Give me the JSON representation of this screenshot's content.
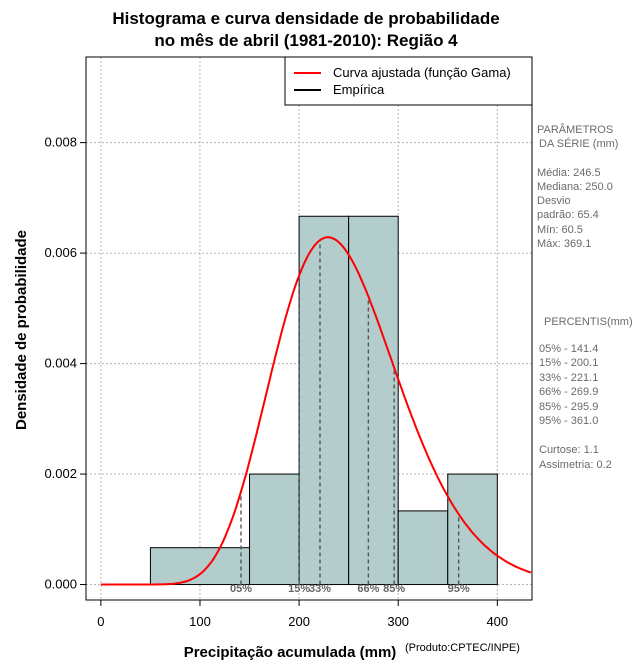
{
  "chart_data": {
    "type": "bar",
    "title": [
      "Histograma e curva densidade de probabilidade",
      "no mês de abril (1981-2010): Região 4"
    ],
    "xlabel": "Precipitação acumulada (mm)",
    "ylabel": "Densidade de probabilidade",
    "credit": "(Produto:CPTEC/INPE)",
    "xlim": [
      -15,
      435
    ],
    "ylim": [
      -0.00028,
      0.00955
    ],
    "x_ticks": [
      0,
      100,
      200,
      300,
      400
    ],
    "y_ticks": [
      0.0,
      0.002,
      0.004,
      0.006,
      0.008
    ],
    "y_tick_labels": [
      "0.000",
      "0.002",
      "0.004",
      "0.006",
      "0.008"
    ],
    "grid": true,
    "bins": [
      {
        "x0": 50,
        "x1": 150,
        "density": 0.000667
      },
      {
        "x0": 150,
        "x1": 200,
        "density": 0.002
      },
      {
        "x0": 200,
        "x1": 250,
        "density": 0.006667
      },
      {
        "x0": 250,
        "x1": 300,
        "density": 0.006667
      },
      {
        "x0": 300,
        "x1": 350,
        "density": 0.001333
      },
      {
        "x0": 350,
        "x1": 400,
        "density": 0.002
      }
    ],
    "bar_color": "#b3cccc",
    "fit_curve": {
      "name": "Curva ajustada (função Gama)",
      "color": "#ff0000",
      "mean": 246.5,
      "sd": 65.4
    },
    "empirical": {
      "name": "Empírica",
      "color": "#000000"
    },
    "percentile_lines": [
      {
        "label": "05%",
        "x": 141.4
      },
      {
        "label": "15%",
        "x": 200.1
      },
      {
        "label": "33%",
        "x": 221.1
      },
      {
        "label": "66%",
        "x": 269.9
      },
      {
        "label": "85%",
        "x": 295.9
      },
      {
        "label": "95%",
        "x": 361.0
      }
    ],
    "legend_position": "top-right"
  },
  "side_panel": {
    "params_title_1": "PARÂMETROS",
    "params_title_2": "DA SÉRIE (mm)",
    "media": "Média:  246.5",
    "mediana": "Mediana:  250.0",
    "desvio_1": "Desvio",
    "desvio_2": "padrão:  65.4",
    "min": "Mín:  60.5",
    "max": "Máx:  369.1",
    "percentis_title": "PERCENTIS(mm)",
    "p05": "05% -  141.4",
    "p15": "15% -  200.1",
    "p33": "33% -  221.1",
    "p66": "66% -  269.9",
    "p85": "85% -  295.9",
    "p95": "95% -  361.0",
    "curtose": "Curtose:  1.1",
    "assimetria": "Assimetria:  0.2"
  }
}
